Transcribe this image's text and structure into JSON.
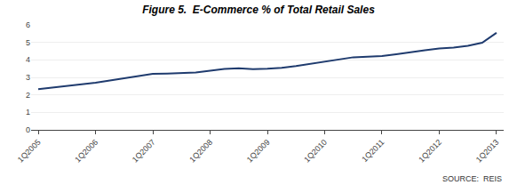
{
  "chart_data": {
    "type": "line",
    "title": "Figure 5.  E-Commerce % of Total Retail Sales",
    "categories": [
      "1Q2005",
      null,
      null,
      null,
      "1Q2006",
      null,
      null,
      null,
      "1Q2007",
      null,
      null,
      null,
      "1Q2008",
      null,
      null,
      null,
      "1Q2009",
      null,
      null,
      null,
      "1Q2010",
      null,
      null,
      null,
      "1Q2011",
      null,
      null,
      null,
      "1Q2012",
      null,
      null,
      null,
      "1Q2013"
    ],
    "values": [
      2.33,
      2.42,
      2.5,
      2.58,
      2.7,
      2.82,
      2.95,
      3.08,
      3.2,
      3.22,
      3.25,
      3.28,
      3.38,
      3.48,
      3.52,
      3.47,
      3.5,
      3.55,
      3.65,
      3.78,
      3.9,
      4.05,
      4.15,
      4.18,
      4.22,
      4.32,
      4.45,
      4.55,
      4.65,
      4.7,
      4.8,
      4.98,
      5.55
    ],
    "color": "#1F3B6E",
    "ylim": [
      0,
      6
    ],
    "yticks": [
      0,
      1,
      2,
      3,
      4,
      5,
      6
    ],
    "grid": true,
    "annotations": [
      "SOURCE:  REIS"
    ]
  }
}
